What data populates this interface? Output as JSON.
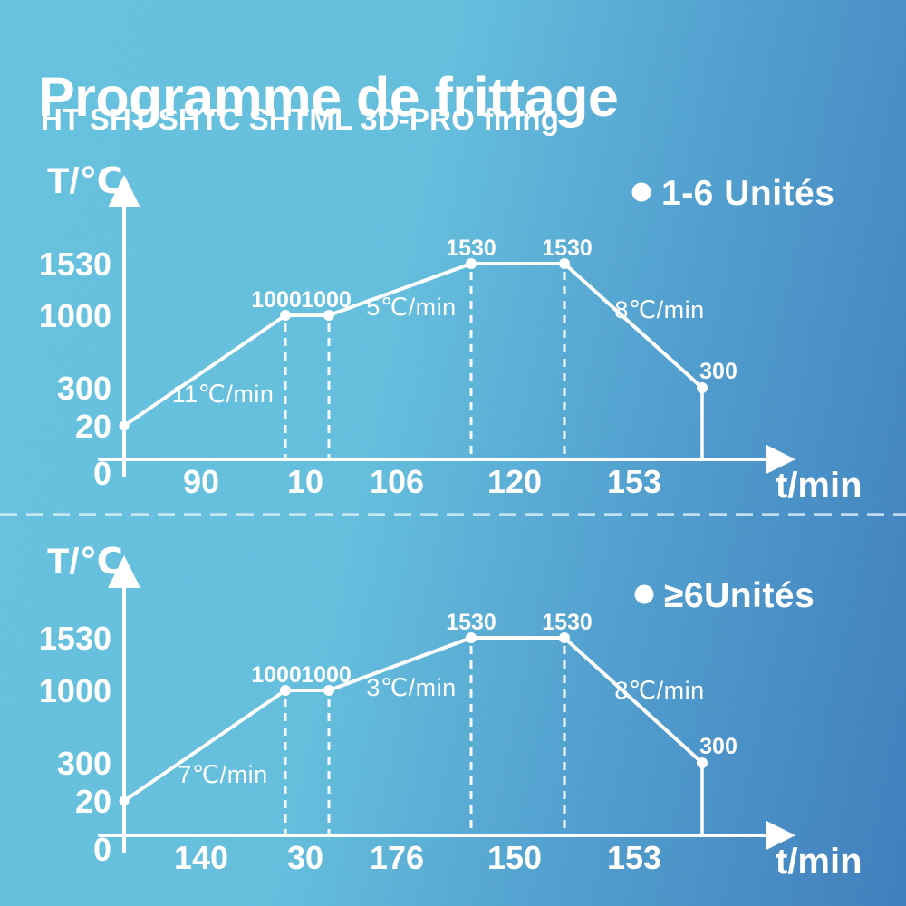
{
  "header": {
    "title": "Programme de frittage",
    "subtitle": "HT SHT SHTC SHTML 3D-PRO firing"
  },
  "colors": {
    "background_left": "#58bcdb",
    "background_right": "#2e72b6",
    "foreground": "#ffffff"
  },
  "chart_data": [
    {
      "type": "line",
      "legend": "1-6 Unités",
      "legend_position": "top-right",
      "y_axis_label": "T/℃",
      "x_axis_label": "t/min",
      "origin_tick": "0",
      "grid": false,
      "y_ticks": [
        {
          "value": 1530,
          "label": "1530"
        },
        {
          "value": 1000,
          "label": "1000"
        },
        {
          "value": 300,
          "label": "300"
        },
        {
          "value": 20,
          "label": "20"
        }
      ],
      "profile_points": [
        {
          "t_c": 20,
          "label": ""
        },
        {
          "t_c": 1000,
          "label": "1000"
        },
        {
          "t_c": 1000,
          "label": "1000"
        },
        {
          "t_c": 1530,
          "label": "1530"
        },
        {
          "t_c": 1530,
          "label": "1530"
        },
        {
          "t_c": 300,
          "label": "300"
        }
      ],
      "segment_durations_min": [
        {
          "minutes": 90,
          "label": "90"
        },
        {
          "minutes": 10,
          "label": "10"
        },
        {
          "minutes": 106,
          "label": "106"
        },
        {
          "minutes": 120,
          "label": "120"
        },
        {
          "minutes": 153,
          "label": "153"
        }
      ],
      "rate_labels": [
        {
          "text": "11℃/min",
          "rate_c_per_min": 11,
          "segment_index": 0
        },
        {
          "text": "5℃/min",
          "rate_c_per_min": 5,
          "segment_index": 2
        },
        {
          "text": "8℃/min",
          "rate_c_per_min": 8,
          "segment_index": 4
        }
      ]
    },
    {
      "type": "line",
      "legend": "≥6Unités",
      "legend_position": "top-right",
      "y_axis_label": "T/℃",
      "x_axis_label": "t/min",
      "origin_tick": "0",
      "grid": false,
      "y_ticks": [
        {
          "value": 1530,
          "label": "1530"
        },
        {
          "value": 1000,
          "label": "1000"
        },
        {
          "value": 300,
          "label": "300"
        },
        {
          "value": 20,
          "label": "20"
        }
      ],
      "profile_points": [
        {
          "t_c": 20,
          "label": ""
        },
        {
          "t_c": 1000,
          "label": "1000"
        },
        {
          "t_c": 1000,
          "label": "1000"
        },
        {
          "t_c": 1530,
          "label": "1530"
        },
        {
          "t_c": 1530,
          "label": "1530"
        },
        {
          "t_c": 300,
          "label": "300"
        }
      ],
      "segment_durations_min": [
        {
          "minutes": 140,
          "label": "140"
        },
        {
          "minutes": 30,
          "label": "30"
        },
        {
          "minutes": 176,
          "label": "176"
        },
        {
          "minutes": 150,
          "label": "150"
        },
        {
          "minutes": 153,
          "label": "153"
        }
      ],
      "rate_labels": [
        {
          "text": "7℃/min",
          "rate_c_per_min": 7,
          "segment_index": 0
        },
        {
          "text": "3℃/min",
          "rate_c_per_min": 3,
          "segment_index": 2
        },
        {
          "text": "8℃/min",
          "rate_c_per_min": 8,
          "segment_index": 4
        }
      ]
    }
  ]
}
